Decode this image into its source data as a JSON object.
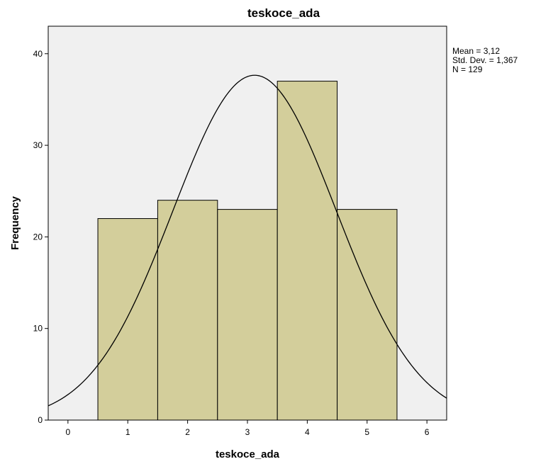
{
  "chart_data": {
    "type": "bar",
    "subtype": "histogram",
    "title": "teskoce_ada",
    "xlabel": "teskoce_ada",
    "ylabel": "Frequency",
    "bins": [
      {
        "from": 0.5,
        "to": 1.5,
        "value": 22
      },
      {
        "from": 1.5,
        "to": 2.5,
        "value": 24
      },
      {
        "from": 2.5,
        "to": 3.5,
        "value": 23
      },
      {
        "from": 3.5,
        "to": 4.5,
        "value": 37
      },
      {
        "from": 4.5,
        "to": 5.5,
        "value": 23
      }
    ],
    "xlim": [
      -0.33,
      6.33
    ],
    "ylim": [
      0,
      43
    ],
    "x_ticks": [
      "0",
      "1",
      "2",
      "3",
      "4",
      "5",
      "6"
    ],
    "y_ticks": [
      "0",
      "10",
      "20",
      "30",
      "40"
    ],
    "normal_curve": {
      "mean": 3.12,
      "std": 1.367,
      "n": 129,
      "bin_width": 1
    },
    "stats": [
      "Mean = 3,12",
      "Std. Dev. = 1,367",
      "N = 129"
    ],
    "colors": {
      "bar_fill": "#d3ce9b",
      "bar_stroke": "#000000",
      "plot_bg": "#f0f0f0",
      "curve": "#000000"
    },
    "grid": false,
    "legend": "none"
  }
}
